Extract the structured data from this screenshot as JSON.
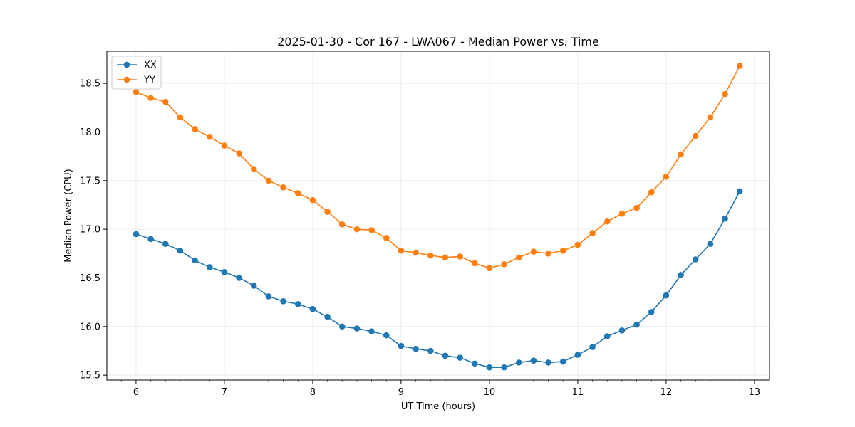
{
  "chart_data": {
    "type": "line",
    "title": "2025-01-30 - Cor 167 - LWA067 - Median Power vs. Time",
    "xlabel": "UT Time (hours)",
    "ylabel": "Median Power (CPU)",
    "xlim": [
      5.67,
      13.17
    ],
    "ylim": [
      15.45,
      18.83
    ],
    "xticks": [
      6,
      7,
      8,
      9,
      10,
      11,
      12,
      13
    ],
    "xtick_labels": [
      "6",
      "7",
      "8",
      "9",
      "10",
      "11",
      "12",
      "13"
    ],
    "yticks": [
      15.5,
      16.0,
      16.5,
      17.0,
      17.5,
      18.0,
      18.5
    ],
    "ytick_labels": [
      "15.5",
      "16.0",
      "16.5",
      "17.0",
      "17.5",
      "18.0",
      "18.5"
    ],
    "grid": true,
    "legend_position": "upper-left",
    "x": [
      6.0,
      6.1667,
      6.3333,
      6.5,
      6.6667,
      6.8333,
      7.0,
      7.1667,
      7.3333,
      7.5,
      7.6667,
      7.8333,
      8.0,
      8.1667,
      8.3333,
      8.5,
      8.6667,
      8.8333,
      9.0,
      9.1667,
      9.3333,
      9.5,
      9.6667,
      9.8333,
      10.0,
      10.1667,
      10.3333,
      10.5,
      10.6667,
      10.8333,
      11.0,
      11.1667,
      11.3333,
      11.5,
      11.6667,
      11.8333,
      12.0,
      12.1667,
      12.3333,
      12.5,
      12.6667,
      12.8333
    ],
    "series": [
      {
        "name": "XX",
        "color": "#1f77b4",
        "values": [
          16.95,
          16.9,
          16.85,
          16.78,
          16.68,
          16.61,
          16.56,
          16.5,
          16.42,
          16.31,
          16.26,
          16.23,
          16.18,
          16.1,
          16.0,
          15.98,
          15.95,
          15.91,
          15.8,
          15.77,
          15.75,
          15.7,
          15.68,
          15.62,
          15.58,
          15.58,
          15.63,
          15.65,
          15.63,
          15.64,
          15.71,
          15.79,
          15.9,
          15.96,
          16.02,
          16.15,
          16.32,
          16.53,
          16.69,
          16.85,
          17.11,
          17.39
        ]
      },
      {
        "name": "YY",
        "color": "#ff7f0e",
        "values": [
          18.41,
          18.35,
          18.31,
          18.15,
          18.03,
          17.95,
          17.86,
          17.78,
          17.62,
          17.5,
          17.43,
          17.37,
          17.3,
          17.18,
          17.05,
          17.0,
          16.99,
          16.91,
          16.78,
          16.76,
          16.73,
          16.71,
          16.72,
          16.65,
          16.6,
          16.64,
          16.71,
          16.77,
          16.75,
          16.78,
          16.84,
          16.96,
          17.08,
          17.16,
          17.22,
          17.38,
          17.54,
          17.77,
          17.96,
          18.15,
          18.39,
          18.68
        ]
      }
    ]
  }
}
